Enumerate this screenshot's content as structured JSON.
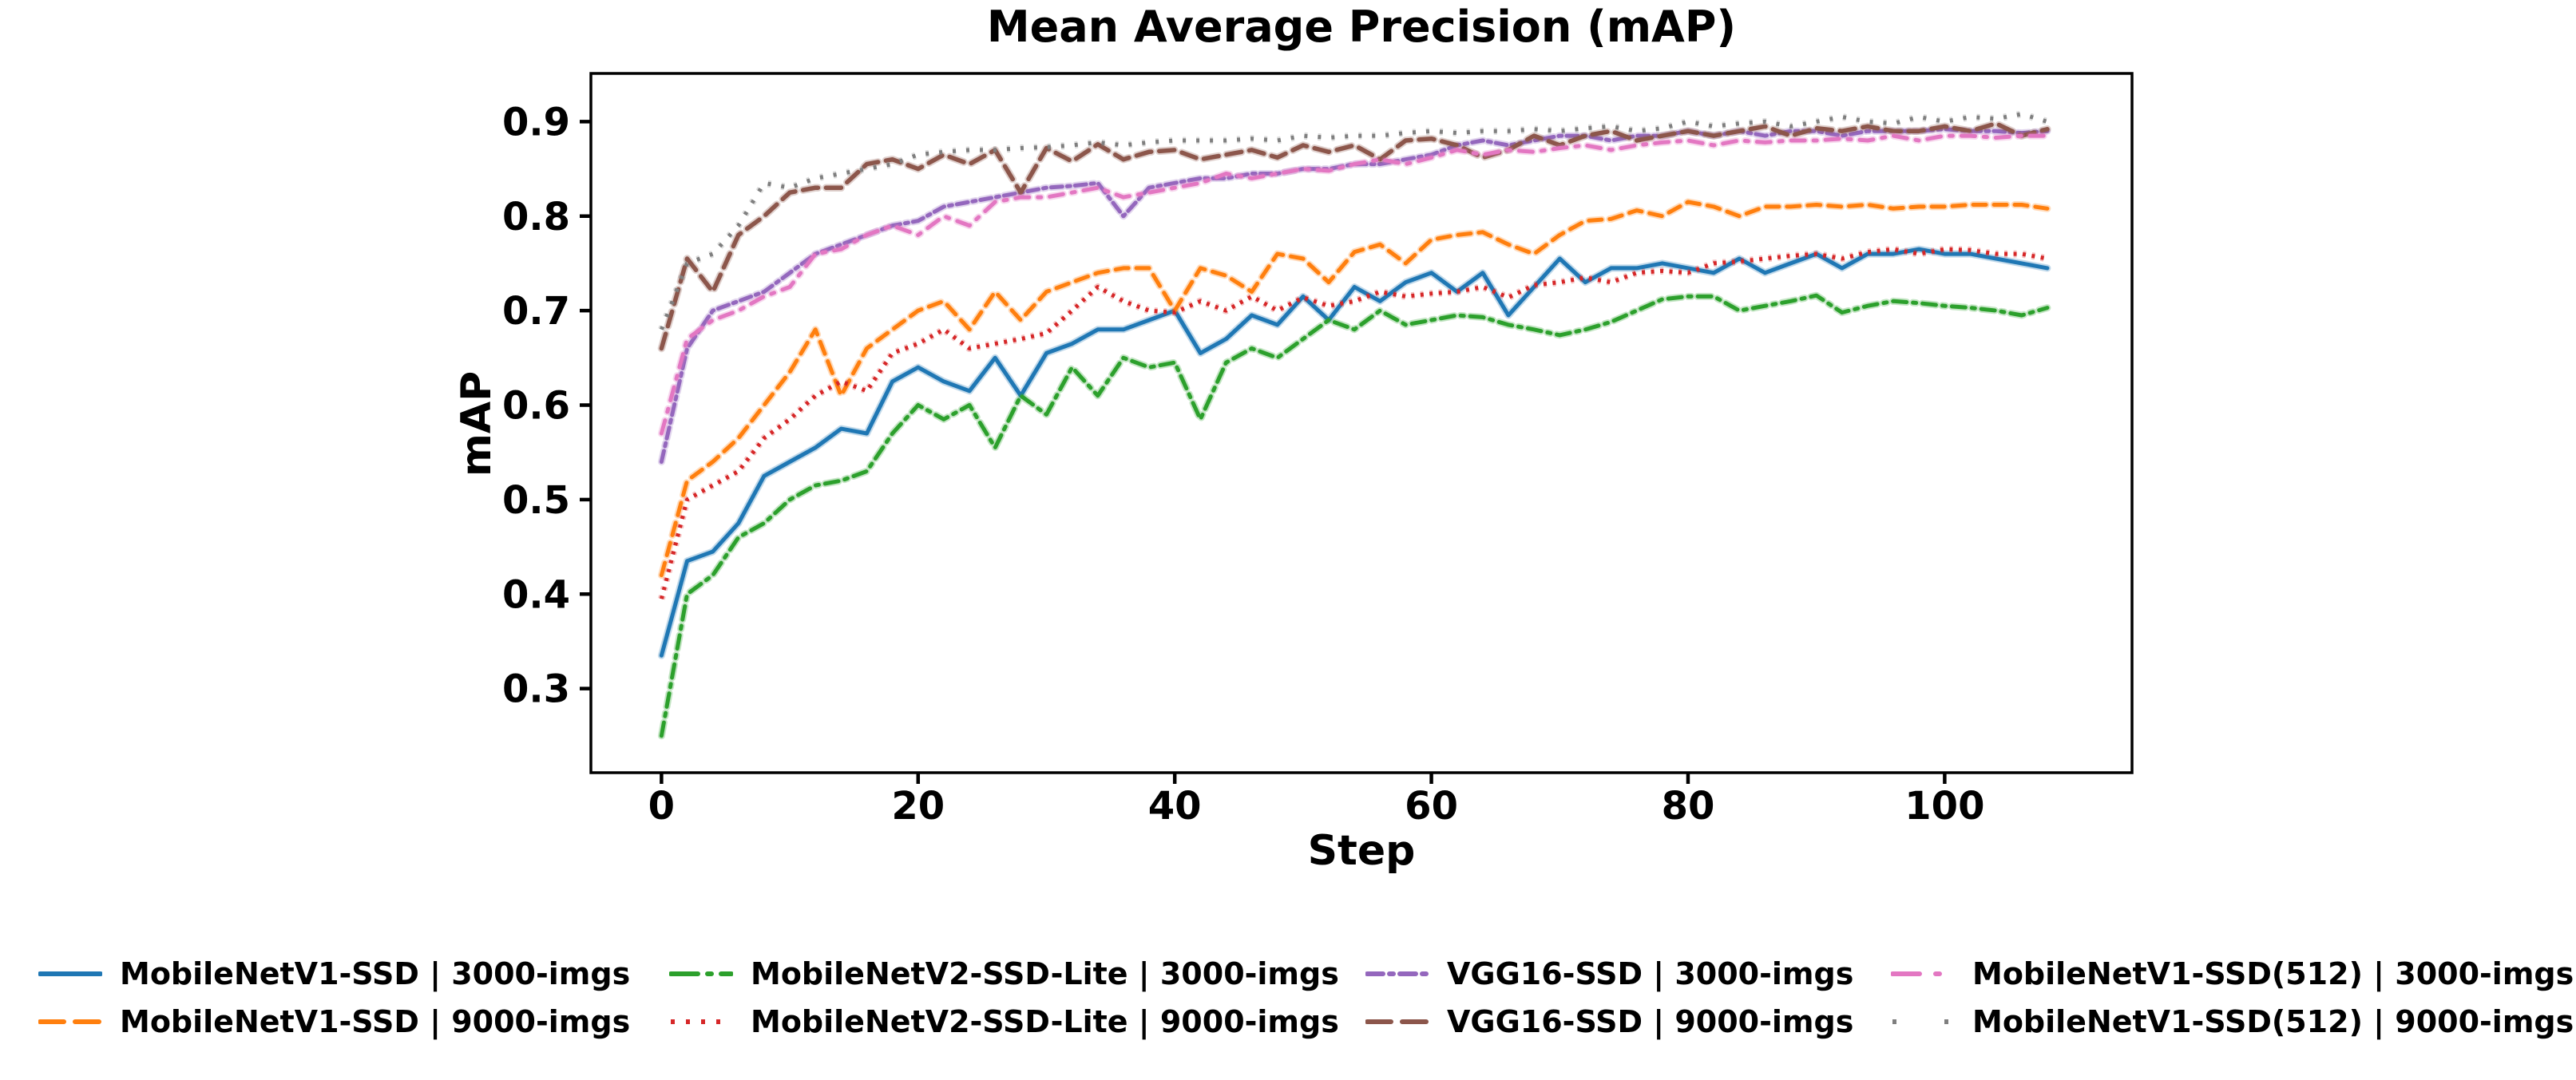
{
  "page": {
    "background": "#ffffff"
  },
  "chart": {
    "title": "Mean Average Precision (mAP)",
    "xlabel": "Step",
    "ylabel": "mAP"
  },
  "chart_data": {
    "type": "line",
    "title": "Mean Average Precision (mAP)",
    "xlabel": "Step",
    "ylabel": "mAP",
    "grid": false,
    "legend_position": "bottom",
    "legend_columns": 4,
    "xlim": [
      -5.5,
      114.6
    ],
    "ylim": [
      0.211,
      0.951
    ],
    "xticks": [
      0,
      20,
      40,
      60,
      80,
      100
    ],
    "yticks": [
      0.3,
      0.4,
      0.5,
      0.6,
      0.7,
      0.8,
      0.9
    ],
    "x_start": 0,
    "x_interval": 2,
    "series": [
      {
        "name": "MobileNetV1-SSD | 3000-imgs",
        "color": "#1f77b4",
        "dash": "",
        "ldash": "",
        "width": 5,
        "cap": "round",
        "values": [
          0.335,
          0.435,
          0.445,
          0.475,
          0.525,
          0.54,
          0.555,
          0.575,
          0.57,
          0.625,
          0.64,
          0.625,
          0.615,
          0.65,
          0.61,
          0.655,
          0.665,
          0.68,
          0.68,
          0.69,
          0.7,
          0.655,
          0.67,
          0.695,
          0.685,
          0.715,
          0.69,
          0.725,
          0.71,
          0.73,
          0.74,
          0.72,
          0.74,
          0.695,
          0.725,
          0.755,
          0.73,
          0.745,
          0.745,
          0.75,
          0.745,
          0.74,
          0.755,
          0.74,
          0.75,
          0.76,
          0.745,
          0.76,
          0.76,
          0.765,
          0.76,
          0.76,
          0.755,
          0.75,
          0.745
        ]
      },
      {
        "name": "MobileNetV1-SSD | 9000-imgs",
        "color": "#ff7f0e",
        "dash": "16 10",
        "ldash": "30 14",
        "width": 5,
        "cap": "round",
        "values": [
          0.42,
          0.52,
          0.54,
          0.565,
          0.6,
          0.635,
          0.68,
          0.61,
          0.66,
          0.68,
          0.7,
          0.71,
          0.68,
          0.72,
          0.69,
          0.72,
          0.73,
          0.74,
          0.745,
          0.745,
          0.7,
          0.745,
          0.737,
          0.72,
          0.76,
          0.755,
          0.73,
          0.762,
          0.77,
          0.75,
          0.775,
          0.78,
          0.783,
          0.77,
          0.76,
          0.78,
          0.795,
          0.797,
          0.806,
          0.8,
          0.815,
          0.81,
          0.8,
          0.81,
          0.81,
          0.812,
          0.81,
          0.812,
          0.808,
          0.81,
          0.81,
          0.812,
          0.812,
          0.812,
          0.808
        ]
      },
      {
        "name": "MobileNetV2-SSD-Lite | 3000-imgs",
        "color": "#2ca02c",
        "dash": "17 8 4 8",
        "ldash": "34 12 5 12",
        "width": 5,
        "cap": "round",
        "values": [
          0.25,
          0.4,
          0.42,
          0.46,
          0.475,
          0.5,
          0.515,
          0.52,
          0.53,
          0.57,
          0.6,
          0.585,
          0.6,
          0.555,
          0.61,
          0.59,
          0.64,
          0.61,
          0.65,
          0.64,
          0.645,
          0.585,
          0.645,
          0.66,
          0.65,
          0.67,
          0.69,
          0.68,
          0.7,
          0.685,
          0.69,
          0.695,
          0.693,
          0.685,
          0.68,
          0.674,
          0.68,
          0.688,
          0.7,
          0.712,
          0.715,
          0.715,
          0.7,
          0.705,
          0.71,
          0.716,
          0.698,
          0.705,
          0.71,
          0.708,
          0.705,
          0.703,
          0.7,
          0.695,
          0.703
        ]
      },
      {
        "name": "MobileNetV2-SSD-Lite | 9000-imgs",
        "color": "#d62728",
        "dash": "4 7.5",
        "ldash": "5 14",
        "width": 5,
        "cap": "butt",
        "values": [
          0.395,
          0.5,
          0.515,
          0.53,
          0.565,
          0.585,
          0.61,
          0.625,
          0.615,
          0.655,
          0.665,
          0.68,
          0.66,
          0.665,
          0.67,
          0.676,
          0.7,
          0.725,
          0.71,
          0.7,
          0.698,
          0.71,
          0.7,
          0.715,
          0.7,
          0.714,
          0.705,
          0.71,
          0.72,
          0.715,
          0.718,
          0.72,
          0.725,
          0.714,
          0.727,
          0.73,
          0.735,
          0.73,
          0.74,
          0.742,
          0.74,
          0.75,
          0.752,
          0.755,
          0.758,
          0.76,
          0.755,
          0.762,
          0.765,
          0.76,
          0.765,
          0.764,
          0.76,
          0.76,
          0.755
        ]
      },
      {
        "name": "VGG16-SSD | 3000-imgs",
        "color": "#9467bd",
        "dash": "14 6 4 6",
        "ldash": "20 8 5 8",
        "width": 5,
        "cap": "round",
        "values": [
          0.54,
          0.66,
          0.7,
          0.71,
          0.72,
          0.74,
          0.76,
          0.77,
          0.78,
          0.79,
          0.795,
          0.81,
          0.815,
          0.82,
          0.825,
          0.83,
          0.832,
          0.835,
          0.8,
          0.83,
          0.835,
          0.84,
          0.84,
          0.845,
          0.845,
          0.85,
          0.85,
          0.855,
          0.855,
          0.86,
          0.865,
          0.875,
          0.88,
          0.875,
          0.88,
          0.885,
          0.885,
          0.88,
          0.885,
          0.885,
          0.89,
          0.885,
          0.89,
          0.885,
          0.89,
          0.89,
          0.885,
          0.89,
          0.89,
          0.89,
          0.892,
          0.89,
          0.89,
          0.888,
          0.89
        ]
      },
      {
        "name": "VGG16-SSD | 9000-imgs",
        "color": "#8c564b",
        "dash": "19 10",
        "ldash": "30 14",
        "width": 5.5,
        "cap": "round",
        "values": [
          0.66,
          0.755,
          0.72,
          0.78,
          0.8,
          0.825,
          0.83,
          0.83,
          0.855,
          0.86,
          0.85,
          0.865,
          0.855,
          0.87,
          0.825,
          0.872,
          0.858,
          0.876,
          0.86,
          0.868,
          0.87,
          0.86,
          0.865,
          0.87,
          0.862,
          0.875,
          0.868,
          0.875,
          0.86,
          0.88,
          0.882,
          0.875,
          0.862,
          0.87,
          0.885,
          0.875,
          0.885,
          0.89,
          0.88,
          0.885,
          0.89,
          0.885,
          0.89,
          0.895,
          0.885,
          0.893,
          0.89,
          0.895,
          0.89,
          0.89,
          0.895,
          0.89,
          0.898,
          0.885,
          0.892
        ]
      },
      {
        "name": "MobileNetV1-SSD(512) | 3000-imgs",
        "color": "#e377c2",
        "dash": "17 11 4 11",
        "ldash": "34 20 5 20",
        "width": 5,
        "cap": "round",
        "values": [
          0.57,
          0.67,
          0.69,
          0.7,
          0.715,
          0.725,
          0.76,
          0.765,
          0.78,
          0.79,
          0.78,
          0.8,
          0.79,
          0.815,
          0.82,
          0.82,
          0.825,
          0.83,
          0.82,
          0.825,
          0.83,
          0.835,
          0.845,
          0.84,
          0.845,
          0.85,
          0.848,
          0.855,
          0.86,
          0.855,
          0.862,
          0.87,
          0.865,
          0.87,
          0.868,
          0.872,
          0.875,
          0.87,
          0.875,
          0.878,
          0.88,
          0.875,
          0.88,
          0.878,
          0.88,
          0.88,
          0.882,
          0.88,
          0.885,
          0.88,
          0.885,
          0.885,
          0.883,
          0.885,
          0.885
        ]
      },
      {
        "name": "MobileNetV1-SSD(512) | 9000-imgs",
        "color": "#7f7f7f",
        "dash": "4 13",
        "ldash": "5 60",
        "width": 5,
        "cap": "butt",
        "values": [
          0.68,
          0.75,
          0.76,
          0.79,
          0.835,
          0.83,
          0.84,
          0.845,
          0.85,
          0.855,
          0.865,
          0.868,
          0.87,
          0.87,
          0.872,
          0.873,
          0.875,
          0.878,
          0.875,
          0.878,
          0.88,
          0.88,
          0.88,
          0.882,
          0.88,
          0.885,
          0.883,
          0.885,
          0.885,
          0.888,
          0.89,
          0.888,
          0.89,
          0.89,
          0.892,
          0.89,
          0.893,
          0.895,
          0.89,
          0.893,
          0.9,
          0.895,
          0.898,
          0.9,
          0.895,
          0.9,
          0.905,
          0.9,
          0.898,
          0.905,
          0.9,
          0.905,
          0.903,
          0.908,
          0.9
        ]
      }
    ]
  }
}
